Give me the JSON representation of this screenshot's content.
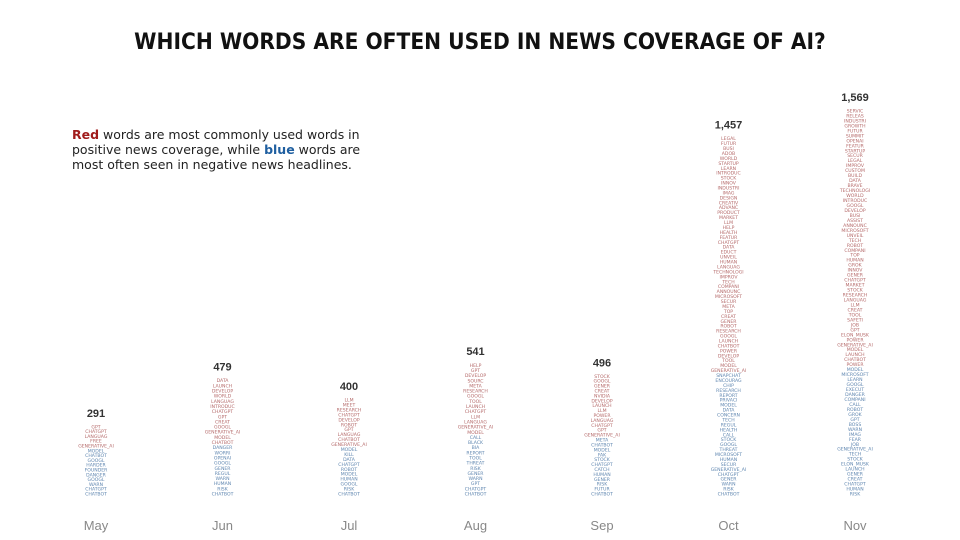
{
  "title": "Which words are often used in news coverage of AI?",
  "note": {
    "red_word": "Red",
    "part1": " words are most commonly used words in positive news coverage, while ",
    "blue_word": "blue",
    "part2": " words are most often seen in negative news headlines."
  },
  "colors": {
    "positive": "#b56a6a",
    "negative": "#5f86b0"
  },
  "chart_data": {
    "type": "bar",
    "style": "stacked word columns",
    "categories": [
      "May",
      "Jun",
      "Jul",
      "Aug",
      "Sep",
      "Oct",
      "Nov"
    ],
    "values": [
      291,
      479,
      400,
      541,
      496,
      1457,
      1569
    ],
    "total_labels": [
      "291",
      "479",
      "400",
      "541",
      "496",
      "1,457",
      "1,569"
    ],
    "ylim": [
      0,
      1569
    ],
    "legend": "text note top-left",
    "words": [
      {
        "month": "May",
        "positive": [
          "GPT",
          "CHATGPT",
          "LANGUAG",
          "FREE",
          "GENERATIVE_AI"
        ],
        "negative": [
          "MODEL",
          "CHATBOT",
          "GOOGL",
          "HARDER",
          "FOUNDER",
          "DANGER",
          "GOOGL",
          "WARN",
          "CHATGPT",
          "CHATBOT"
        ]
      },
      {
        "month": "Jun",
        "positive": [
          "DATA",
          "LAUNCH",
          "DEVELOP",
          "WORLD",
          "LANGUAG",
          "INTRODUC",
          "CHATGPT",
          "GPT",
          "CREAT",
          "GOOGL",
          "GENERATIVE_AI",
          "MODEL",
          "CHATBOT"
        ],
        "negative": [
          "DANGER",
          "WORRI",
          "OPENAI",
          "GOOGL",
          "GENER",
          "REGUL",
          "WARN",
          "HUMAN",
          "RISK",
          "CHATBOT"
        ]
      },
      {
        "month": "Jul",
        "positive": [
          "LLM",
          "MEET",
          "RESEARCH",
          "CHATGPT",
          "DEVELOP",
          "ROBOT",
          "GPT",
          "LANGUAG",
          "CHATBOT",
          "GENERATIVE_AI"
        ],
        "negative": [
          "MODEL",
          "KILL",
          "DATA",
          "CHATGPT",
          "ROBOT",
          "MODEL",
          "HUMAN",
          "GOOGL",
          "RISK",
          "CHATBOT"
        ]
      },
      {
        "month": "Aug",
        "positive": [
          "HELP",
          "GPT",
          "DEVELOP",
          "SOURC",
          "META",
          "RESEARCH",
          "GOOGL",
          "TOOL",
          "LAUNCH",
          "CHATGPT",
          "LLM",
          "LANGUAG",
          "GENERATIVE_AI",
          "MODEL"
        ],
        "negative": [
          "CALL",
          "BLACK",
          "BIA",
          "REPORT",
          "TOOL",
          "THREAT",
          "RISK",
          "GENER",
          "WARN",
          "GPT",
          "CHATGPT",
          "CHATBOT"
        ]
      },
      {
        "month": "Sep",
        "positive": [
          "STOCK",
          "GOOGL",
          "GENER",
          "CREAT",
          "NVIDIA",
          "DEVELOP",
          "LAUNCH",
          "LLM",
          "POWER",
          "LANGUAG",
          "CHATGPT",
          "GPT",
          "GENERATIVE_AI"
        ],
        "negative": [
          "META",
          "CHATBOT",
          "MODEL",
          "FAK",
          "STOCK",
          "CHATGPT",
          "CATCH",
          "HUMAN",
          "GENER",
          "RISK",
          "FUTUR",
          "CHATBOT"
        ]
      },
      {
        "month": "Oct",
        "positive": [
          "LEGAL",
          "FUTUR",
          "BUSI",
          "ADOB",
          "WORLD",
          "STARTUP",
          "LEARN",
          "INTRODUC",
          "STOCK",
          "INNOV",
          "INDUSTRI",
          "IMAG",
          "DESIGN",
          "CREATIV",
          "ADVANC",
          "PRODUCT",
          "MARKET",
          "LLM",
          "HELP",
          "HEALTH",
          "FEATUR",
          "CHATGPT",
          "DATA",
          "EDUCT",
          "UNVEIL",
          "HUMAN",
          "LANGUAG",
          "TECHNOLOGI",
          "IMPROV",
          "TECH",
          "COMPANI",
          "ANNOUNC",
          "MICROSOFT",
          "SECUR",
          "META",
          "TOP",
          "CREAT",
          "GENER",
          "ROBOT",
          "RESEARCH",
          "GOOGL",
          "LAUNCH",
          "CHATBOT",
          "POWER",
          "DEVELOP",
          "TOOL",
          "MODEL",
          "GENERATIVE_AI"
        ],
        "negative": [
          "SNAPCHAT",
          "ENCOURAG",
          "CHIP",
          "RESEARCH",
          "REPORT",
          "PRIVACI",
          "MODEL",
          "DATA",
          "CONCERN",
          "TECH",
          "REGUL",
          "HEALTH",
          "CALL",
          "STOCK",
          "GOOGL",
          "THREAT",
          "MICROSOFT",
          "HUMAN",
          "SECUR",
          "GENERATIVE_AI",
          "CHATGPT",
          "GENER",
          "WARN",
          "RISK",
          "CHATBOT"
        ]
      },
      {
        "month": "Nov",
        "positive": [
          "SERVIC",
          "RELEAS",
          "INDUSTRI",
          "GROWTH",
          "FUTUR",
          "SUMMIT",
          "OPENAI",
          "FEATUR",
          "STARTUP",
          "SECUR",
          "LEGAL",
          "IMPROV",
          "CUSTOM",
          "BUILD",
          "DATA",
          "BRAVE",
          "TECHNOLOGI",
          "WORLD",
          "INTRODUC",
          "GOOGL",
          "DEVELOP",
          "BUSI",
          "ASSIST",
          "ANNOUNC",
          "MICROSOFT",
          "UNVEIL",
          "TECH",
          "ROBOT",
          "COMPANI",
          "TOP",
          "HUMAN",
          "GROK",
          "INNOV",
          "GENER",
          "CHATGPT",
          "MARKET",
          "STOCK",
          "RESEARCH",
          "LANGUAG",
          "LLM",
          "CREAT",
          "TOOL",
          "SAFETI",
          "JOB",
          "GPT",
          "ELON_MUSK",
          "POWER",
          "GENERATIVE_AI",
          "MODEL",
          "LAUNCH",
          "CHATBOT",
          "POWER"
        ],
        "negative": [
          "MODEL",
          "MICROSOFT",
          "LEARN",
          "GOOGL",
          "EXECUT",
          "DANGER",
          "COMPANI",
          "CALL",
          "ROBOT",
          "GROK",
          "GPT",
          "BOSS",
          "WARN",
          "IMAG",
          "FEAR",
          "JOB",
          "GENERATIVE_AI",
          "TECH",
          "STOCK",
          "ELON_MUSK",
          "LAUNCH",
          "GENER",
          "CREAT",
          "CHATGPT",
          "HUMAN",
          "RISK"
        ]
      }
    ]
  }
}
